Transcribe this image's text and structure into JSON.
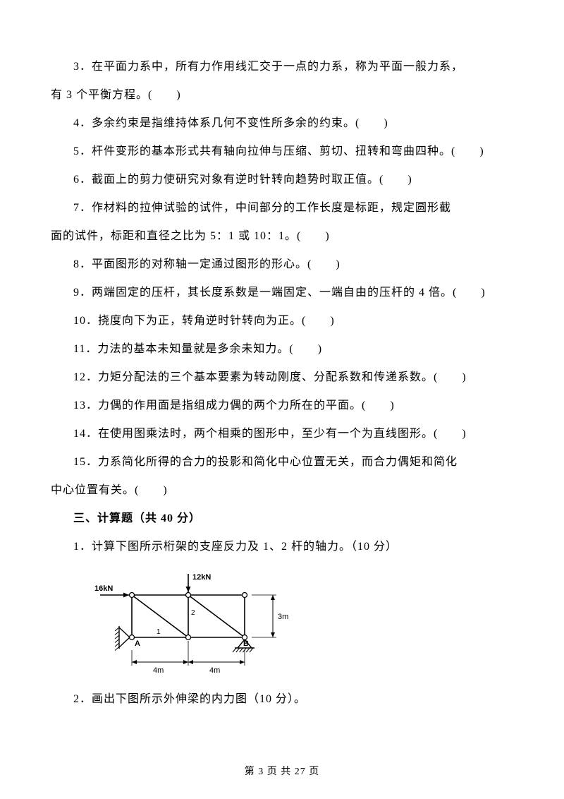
{
  "questions": {
    "q3": "3．在平面力系中，所有力作用线汇交于一点的力系，称为平面一般力系，",
    "q3b": "有 3 个平衡方程。(　　)",
    "q4": "4．多余约束是指维持体系几何不变性所多余的约束。(　　)",
    "q5": "5．杆件变形的基本形式共有轴向拉伸与压缩、剪切、扭转和弯曲四种。(　　)",
    "q6": "6．截面上的剪力使研究对象有逆时针转向趋势时取正值。(　　)",
    "q7": "7．作材料的拉伸试验的试件，中间部分的工作长度是标距，规定圆形截",
    "q7b": "面的试件，标距和直径之比为 5：1 或 10：1。(　　)",
    "q8": "8．平面图形的对称轴一定通过图形的形心。(　　)",
    "q9": "9．两端固定的压杆，其长度系数是一端固定、一端自由的压杆的 4 倍。(　　)",
    "q10": "10．挠度向下为正，转角逆时针转向为正。(　　)",
    "q11": "11．力法的基本未知量就是多余未知力。(　　)",
    "q12": "12．力矩分配法的三个基本要素为转动刚度、分配系数和传递系数。(　　)",
    "q13": "13．力偶的作用面是指组成力偶的两个力所在的平面。(　　)",
    "q14": "14．在使用图乘法时，两个相乘的图形中，至少有一个为直线图形。(　　)",
    "q15": "15．力系简化所得的合力的投影和简化中心位置无关，而合力偶矩和简化",
    "q15b": "中心位置有关。(　　)"
  },
  "section3": {
    "title": "三、计算题（共 40 分）",
    "q1": "1．计算下图所示桁架的支座反力及 1、2 杆的轴力。（10 分）",
    "q2": "2．画出下图所示外伸梁的内力图（10 分）。"
  },
  "truss": {
    "load_h": "16kN",
    "load_v": "12kN",
    "label_A": "A",
    "label_B": "B",
    "label_1": "1",
    "label_2": "2",
    "dim_4m_1": "4m",
    "dim_4m_2": "4m",
    "dim_3m": "3m",
    "stroke": "#000000",
    "stroke_width": 1.3,
    "stroke_width_thick": 1.6,
    "node_radius": 3.5
  },
  "footer": {
    "text": "第 3 页 共 27 页"
  }
}
